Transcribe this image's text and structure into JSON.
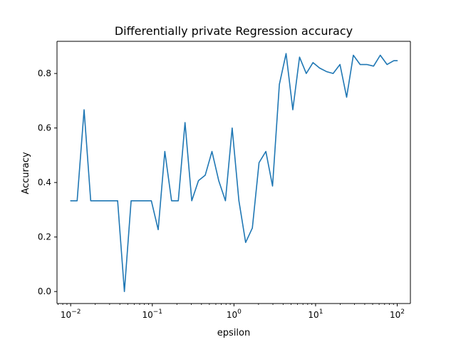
{
  "chart_data": {
    "type": "line",
    "title": "Differentially private Regression accuracy",
    "xlabel": "epsilon",
    "ylabel": "Accuracy",
    "xscale": "log",
    "xlim": [
      0.0068,
      145
    ],
    "ylim": [
      -0.044,
      0.918
    ],
    "grid": false,
    "legend": "none",
    "colors": {
      "line": "#1f77b4",
      "axes": "#000000",
      "background": "#ffffff"
    },
    "x_ticks": [
      {
        "value": 0.01,
        "base": "10",
        "exp": "−2"
      },
      {
        "value": 0.1,
        "base": "10",
        "exp": "−1"
      },
      {
        "value": 1,
        "base": "10",
        "exp": "0"
      },
      {
        "value": 10,
        "base": "10",
        "exp": "1"
      },
      {
        "value": 100,
        "base": "10",
        "exp": "2"
      }
    ],
    "y_ticks": [
      {
        "value": 0.0,
        "label": "0.0"
      },
      {
        "value": 0.2,
        "label": "0.2"
      },
      {
        "value": 0.4,
        "label": "0.4"
      },
      {
        "value": 0.6,
        "label": "0.6"
      },
      {
        "value": 0.8,
        "label": "0.8"
      }
    ],
    "series": [
      {
        "x": [
          0.01,
          0.012,
          0.0146,
          0.0176,
          0.0213,
          0.0257,
          0.0311,
          0.0376,
          0.0455,
          0.055,
          0.0665,
          0.0805,
          0.0973,
          0.118,
          0.1423,
          0.1721,
          0.2081,
          0.2516,
          0.3043,
          0.3679,
          0.4449,
          0.5379,
          0.6504,
          0.7865,
          0.951,
          1.15,
          1.39,
          1.68,
          2.03,
          2.46,
          2.97,
          3.6,
          4.35,
          5.26,
          6.36,
          7.69,
          9.3,
          11.2,
          13.6,
          16.4,
          19.9,
          24.0,
          29.0,
          35.1,
          42.4,
          51.3,
          62.0,
          75.0,
          90.7,
          100.0
        ],
        "y": [
          0.333,
          0.333,
          0.667,
          0.333,
          0.333,
          0.333,
          0.333,
          0.333,
          0.0,
          0.333,
          0.333,
          0.333,
          0.333,
          0.227,
          0.514,
          0.333,
          0.333,
          0.62,
          0.333,
          0.407,
          0.427,
          0.514,
          0.407,
          0.333,
          0.6,
          0.333,
          0.18,
          0.233,
          0.473,
          0.514,
          0.387,
          0.76,
          0.873,
          0.667,
          0.86,
          0.8,
          0.84,
          0.82,
          0.807,
          0.8,
          0.833,
          0.713,
          0.867,
          0.833,
          0.833,
          0.827,
          0.867,
          0.833,
          0.847,
          0.847
        ]
      }
    ]
  }
}
